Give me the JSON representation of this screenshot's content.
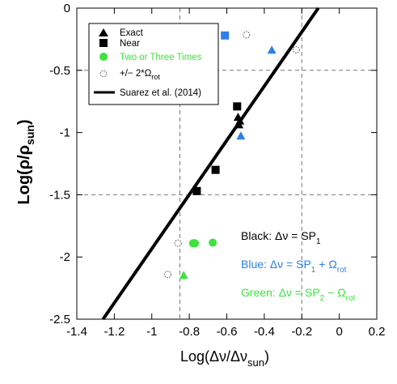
{
  "chart_data": {
    "type": "scatter",
    "xlabel": "Log(Δν/Δν",
    "xlabel_sub": "sun",
    "xlabel_close": ")",
    "ylabel": "Log(ρ/ρ",
    "ylabel_sub": "sun",
    "ylabel_close": ")",
    "xlim": [
      -1.4,
      0.2
    ],
    "ylim": [
      -2.5,
      0
    ],
    "x_ticks": [
      "-1.4",
      "-1.2",
      "-1",
      "-0.8",
      "-0.6",
      "-0.4",
      "-0.2",
      "0",
      "0.2"
    ],
    "x_tick_values": [
      -1.4,
      -1.2,
      -1.0,
      -0.8,
      -0.6,
      -0.4,
      -0.2,
      0,
      0.2
    ],
    "y_ticks": [
      "0",
      "-0.5",
      "-1",
      "-1.5",
      "-2",
      "-2.5"
    ],
    "y_tick_values": [
      0,
      -0.5,
      -1,
      -1.5,
      -2,
      -2.5
    ],
    "reference_lines": {
      "vertical": [
        -0.85,
        -0.2
      ],
      "horizontal": [
        -0.5,
        -1.5
      ],
      "style": "dashed gray"
    },
    "colors": {
      "black": "#000000",
      "blue": "#2f7fe6",
      "green": "#3de23d",
      "hollow": "#555555"
    },
    "series": [
      {
        "name": "Exact",
        "marker": "triangle",
        "points": [
          {
            "x": -0.54,
            "y": -0.88,
            "color": "black"
          },
          {
            "x": -0.535,
            "y": -0.94,
            "color": "black"
          },
          {
            "x": -0.53,
            "y": -0.91,
            "color": "black"
          },
          {
            "x": -0.36,
            "y": -0.34,
            "color": "blue"
          },
          {
            "x": -0.525,
            "y": -1.03,
            "color": "blue"
          },
          {
            "x": -0.83,
            "y": -2.15,
            "color": "green"
          }
        ]
      },
      {
        "name": "Near",
        "marker": "square",
        "points": [
          {
            "x": -0.545,
            "y": -0.79,
            "color": "black"
          },
          {
            "x": -0.66,
            "y": -1.3,
            "color": "black"
          },
          {
            "x": -0.76,
            "y": -1.47,
            "color": "black"
          },
          {
            "x": -0.61,
            "y": -0.22,
            "color": "blue"
          }
        ]
      },
      {
        "name": "Two or Three Times",
        "marker": "circle",
        "points": [
          {
            "x": -0.78,
            "y": -1.89,
            "color": "green"
          },
          {
            "x": -0.77,
            "y": -1.89,
            "color": "green"
          },
          {
            "x": -0.675,
            "y": -1.885,
            "color": "green"
          }
        ]
      },
      {
        "name": "+/− 2*Ω",
        "name_sub": "rot",
        "marker": "open-circle",
        "points": [
          {
            "x": -0.495,
            "y": -0.215
          },
          {
            "x": -0.23,
            "y": -0.335
          },
          {
            "x": -0.86,
            "y": -1.89
          },
          {
            "x": -0.915,
            "y": -2.14
          }
        ]
      }
    ],
    "fit_line": {
      "name": "Suarez et al. (2014)",
      "points": [
        [
          -1.26,
          -2.5
        ],
        [
          -0.112,
          0
        ]
      ]
    },
    "legend": {
      "position": "top-left",
      "entries": [
        {
          "label": "Exact",
          "color": "#000000"
        },
        {
          "label": "Near",
          "color": "#000000"
        },
        {
          "label": "Two or Three Times",
          "color": "#3de23d"
        },
        {
          "label": "+/− 2*Ω",
          "sub": "rot",
          "color": "#000000"
        },
        {
          "label": "Suarez et al. (2014)",
          "color": "#000000"
        }
      ]
    },
    "annotations": [
      {
        "prefix": "Black:  Δν = SP",
        "sub1": "1",
        "mid": "",
        "sub2": "",
        "color": "#000000"
      },
      {
        "prefix": "Blue:  Δν = SP",
        "sub1": "1",
        "mid": " + Ω",
        "sub2": "rot",
        "color": "#2f7fe6"
      },
      {
        "prefix": "Green:  Δν = SP",
        "sub1": "2",
        "mid": " − Ω",
        "sub2": "rot",
        "color": "#3de23d"
      }
    ]
  }
}
